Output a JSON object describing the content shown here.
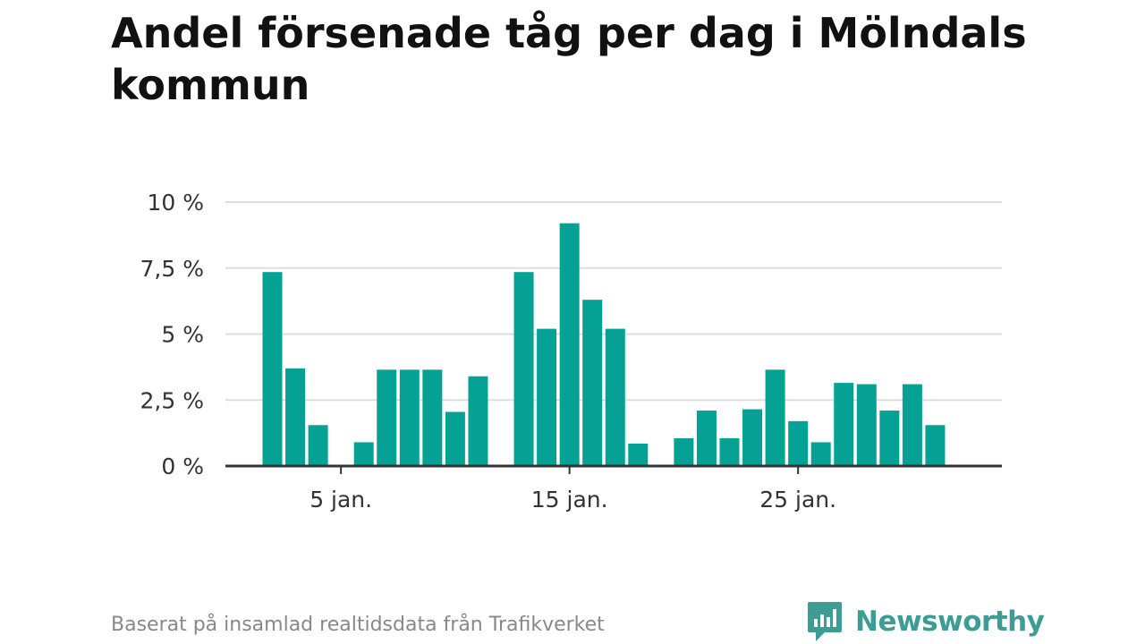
{
  "title": "Andel försenade tåg per dag i Mölndals kommun",
  "footer": "Baserat på insamlad realtidsdata från Trafikverket",
  "brand": {
    "name": "Newsworthy",
    "color": "#3d9d95",
    "logo_icon": "chat-bubble-bar-chart-icon"
  },
  "colors": {
    "bar": "#05a195",
    "grid": "#dddddd",
    "axis": "#333333",
    "text": "#333333"
  },
  "chart_data": {
    "type": "bar",
    "title": "Andel försenade tåg per dag i Mölndals kommun",
    "xlabel": "",
    "ylabel": "",
    "x_unit": "day of January",
    "categories": [
      2,
      3,
      4,
      5,
      6,
      7,
      8,
      9,
      10,
      11,
      12,
      13,
      14,
      15,
      16,
      17,
      18,
      19,
      20,
      21,
      22,
      23,
      24,
      25,
      26,
      27,
      28,
      29,
      30,
      31
    ],
    "values": [
      7.35,
      3.7,
      1.55,
      0,
      0.9,
      3.65,
      3.65,
      3.65,
      2.05,
      3.4,
      0,
      7.35,
      5.2,
      9.2,
      6.3,
      5.2,
      0.85,
      0,
      1.05,
      2.1,
      1.05,
      2.15,
      3.65,
      1.7,
      0.9,
      3.15,
      3.1,
      2.1,
      3.1,
      1.55
    ],
    "ylim": [
      0,
      10
    ],
    "yticks": [
      0,
      2.5,
      5,
      7.5,
      10
    ],
    "ytick_labels": [
      "0 %",
      "2,5 %",
      "5 %",
      "7,5 %",
      "10 %"
    ],
    "xtick_positions": [
      5,
      15,
      25
    ],
    "xtick_labels": [
      "5 jan.",
      "15 jan.",
      "25 jan."
    ],
    "grid": true,
    "legend": "none"
  }
}
